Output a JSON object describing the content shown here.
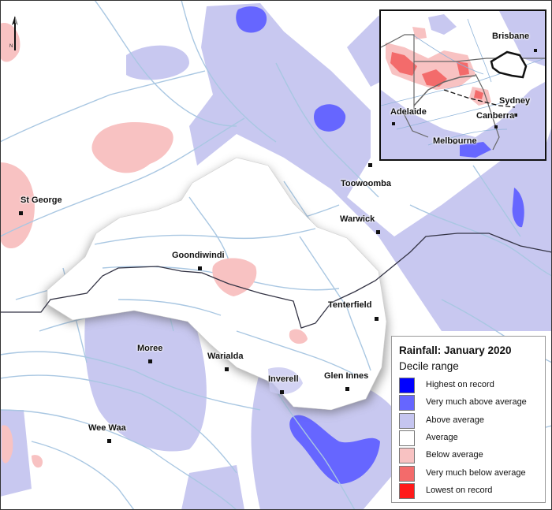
{
  "legend": {
    "title": "Rainfall: January 2020",
    "subtitle": "Decile range",
    "items": [
      {
        "label": "Highest on record",
        "color": "#0000ff"
      },
      {
        "label": "Very much above average",
        "color": "#6666ff"
      },
      {
        "label": "Above average",
        "color": "#c5c5f0"
      },
      {
        "label": "Average",
        "color": "#ffffff"
      },
      {
        "label": "Below average",
        "color": "#f8c2c2"
      },
      {
        "label": "Very much below average",
        "color": "#f36b6b"
      },
      {
        "label": "Lowest on record",
        "color": "#ff1a1a"
      }
    ]
  },
  "north_arrow": {
    "letter": "N"
  },
  "towns": [
    {
      "name": "St George"
    },
    {
      "name": "Goondiwindi"
    },
    {
      "name": "Toowoomba"
    },
    {
      "name": "Warwick"
    },
    {
      "name": "Tenterfield"
    },
    {
      "name": "Moree"
    },
    {
      "name": "Warialda"
    },
    {
      "name": "Inverell"
    },
    {
      "name": "Glen Innes"
    },
    {
      "name": "Wee Waa"
    }
  ],
  "inset_cities": [
    {
      "name": "Brisbane"
    },
    {
      "name": "Sydney"
    },
    {
      "name": "Adelaide"
    },
    {
      "name": "Canberra"
    },
    {
      "name": "Melbourne"
    }
  ],
  "colors": {
    "river": "#a9c7e2",
    "water_blue": "#8fb4d9",
    "state_border": "#333344",
    "map_frame": "#333333"
  }
}
